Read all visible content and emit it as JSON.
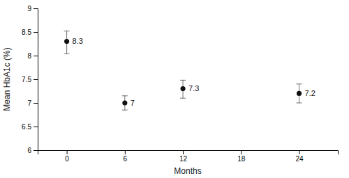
{
  "chart_data": {
    "type": "scatter",
    "xlabel": "Months",
    "ylabel": "Mean HbA1c (%)",
    "x": [
      0,
      6,
      12,
      24
    ],
    "values": [
      8.3,
      7.0,
      7.3,
      7.2
    ],
    "error_lower": [
      0.26,
      0.15,
      0.2,
      0.2
    ],
    "error_upper": [
      0.22,
      0.15,
      0.18,
      0.2
    ],
    "data_labels": true,
    "color": "#111111",
    "marker": "circle",
    "xlim": [
      -3,
      28
    ],
    "ylim": [
      6,
      9
    ],
    "xticks": [
      0,
      6,
      12,
      18,
      24
    ],
    "yticks": [
      6,
      6.5,
      7,
      7.5,
      8,
      8.5,
      9
    ]
  }
}
